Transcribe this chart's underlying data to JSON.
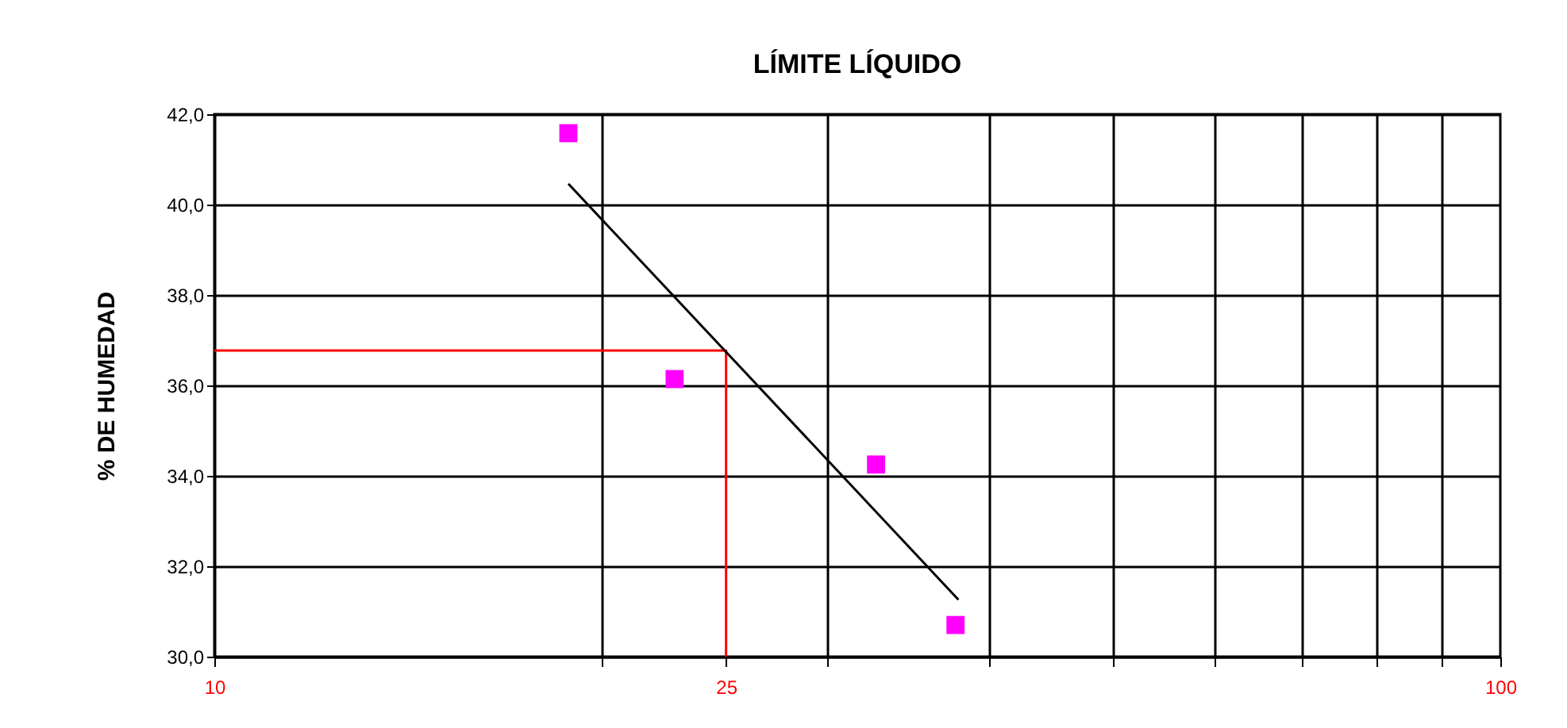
{
  "chart_data": {
    "type": "scatter",
    "title": "LÍMITE LÍQUIDO",
    "ylabel": "% DE HUMEDAD",
    "log": "x",
    "xlim": [
      10,
      100
    ],
    "xticks": [
      10,
      {
        "value": 20,
        "label": null
      },
      25,
      {
        "value": 30,
        "label": null
      },
      {
        "value": 40,
        "label": null
      },
      {
        "value": 50,
        "label": null
      },
      {
        "value": 60,
        "label": null
      },
      {
        "value": 70,
        "label": null
      },
      {
        "value": 80,
        "label": null
      },
      {
        "value": 90,
        "label": null
      },
      100
    ],
    "ylim": [
      30,
      42
    ],
    "yticks": [
      {
        "value": 30,
        "label": "30,0"
      },
      {
        "value": 32,
        "label": "32,0"
      },
      {
        "value": 34,
        "label": "34,0"
      },
      {
        "value": 36,
        "label": "36,0"
      },
      {
        "value": 38,
        "label": "38,0"
      },
      {
        "value": 40,
        "label": "40,0"
      },
      {
        "value": 42,
        "label": "42,0"
      }
    ],
    "grid": true,
    "series": [
      {
        "type": "line",
        "color": "#ff0000",
        "x": [
          10,
          25,
          25
        ],
        "values": [
          36.77,
          36.77,
          30
        ]
      },
      {
        "type": "line",
        "color": "#000000",
        "x": [
          18.85,
          37.9
        ],
        "values": [
          40.46,
          31.26
        ]
      },
      {
        "marker": "square",
        "color": "#ff00ff",
        "x": [
          18.85,
          22.8,
          32.7,
          37.7
        ],
        "values": [
          41.58,
          36.14,
          34.25,
          30.7
        ]
      }
    ]
  }
}
